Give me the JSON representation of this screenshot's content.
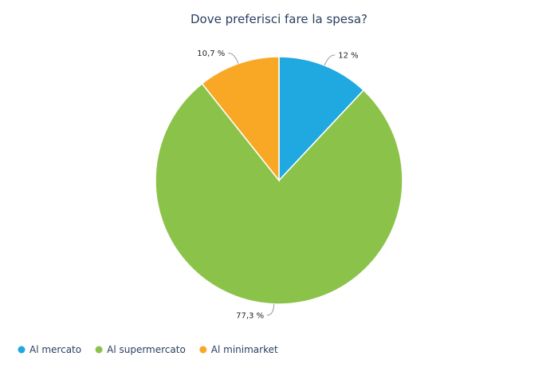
{
  "chart_data": {
    "type": "pie",
    "title": "Dove preferisci fare la spesa?",
    "categories": [
      "Al mercato",
      "Al supermercato",
      "Al minimarket"
    ],
    "values": [
      12,
      77.3,
      10.7
    ],
    "labels": [
      "12 %",
      "77,3 %",
      "10,7 %"
    ],
    "colors": [
      "#20a8e0",
      "#8bc34a",
      "#f9a825"
    ],
    "legend": "bottom-left",
    "start_angle": "12 o'clock, clockwise"
  }
}
